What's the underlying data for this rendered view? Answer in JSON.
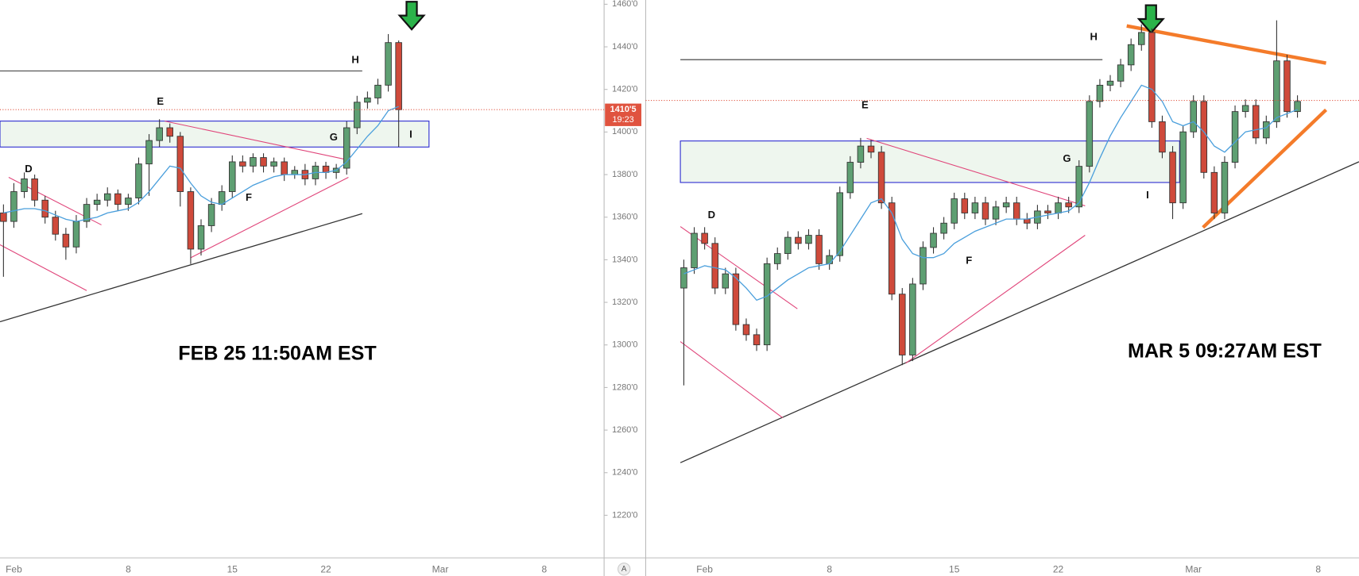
{
  "chart_data": [
    {
      "type": "candlestick",
      "note": "FEB 25 11:50AM EST",
      "labels": [
        "D",
        "E",
        "F",
        "G",
        "H",
        "I"
      ],
      "categories": [
        null,
        "Feb",
        null,
        null,
        null,
        null,
        null,
        null,
        null,
        null,
        null,
        null,
        "8",
        null,
        null,
        null,
        null,
        null,
        null,
        null,
        null,
        null,
        "15",
        null,
        null,
        null,
        null,
        null,
        null,
        null,
        null,
        "22",
        null,
        null,
        null,
        null,
        null,
        null,
        null,
        null,
        null,
        null,
        "Mar",
        null,
        null,
        null,
        null,
        null,
        null,
        null,
        null,
        null,
        "8",
        null
      ],
      "open": [
        1362,
        1358,
        1372,
        1378,
        1368,
        1360,
        1352,
        1346,
        1358,
        1366,
        1368,
        1371,
        1366,
        1369,
        1385,
        1396,
        1402,
        1398,
        1372,
        1345,
        1356,
        1366,
        1372,
        1386,
        1384,
        1388,
        1384,
        1386,
        1380,
        1382,
        1378,
        1384,
        1381,
        1383,
        1402,
        1414,
        1416,
        1422,
        1442,
        null,
        null,
        null,
        null,
        null,
        null,
        null,
        null,
        null,
        null,
        null,
        null,
        null,
        null,
        null
      ],
      "high": [
        1366,
        1376,
        1381,
        1380,
        1370,
        1363,
        1355,
        1361,
        1369,
        1371,
        1374,
        1373,
        1371,
        1388,
        1399,
        1406,
        1404,
        1400,
        1374,
        1359,
        1369,
        1375,
        1389,
        1389,
        1390,
        1390,
        1388,
        1388,
        1384,
        1385,
        1386,
        1386,
        1385,
        1405,
        1417,
        1419,
        1425,
        1446,
        1443,
        null,
        null,
        null,
        null,
        null,
        null,
        null,
        null,
        null,
        null,
        null,
        null,
        null,
        null,
        null
      ],
      "low": [
        1332,
        1355,
        1369,
        1365,
        1357,
        1349,
        1340,
        1343,
        1355,
        1363,
        1365,
        1363,
        1363,
        1366,
        1370,
        1393,
        1395,
        1365,
        1338,
        1342,
        1353,
        1363,
        1369,
        1381,
        1381,
        1381,
        1381,
        1377,
        1378,
        1375,
        1375,
        1378,
        1378,
        1380,
        1399,
        1411,
        1413,
        1419,
        1393,
        null,
        null,
        null,
        null,
        null,
        null,
        null,
        null,
        null,
        null,
        null,
        null,
        null,
        null,
        null
      ],
      "close": [
        1358,
        1372,
        1378,
        1368,
        1360,
        1352,
        1346,
        1358,
        1366,
        1368,
        1371,
        1366,
        1369,
        1385,
        1396,
        1402,
        1398,
        1372,
        1345,
        1356,
        1366,
        1372,
        1386,
        1384,
        1388,
        1384,
        1386,
        1380,
        1382,
        1378,
        1384,
        1381,
        1383,
        1402,
        1414,
        1416,
        1422,
        1442,
        1410.5,
        null,
        null,
        null,
        null,
        null,
        null,
        null,
        null,
        null,
        null,
        null,
        null,
        null,
        null,
        null
      ],
      "ma": [
        1362,
        1363,
        1364,
        1364,
        1363,
        1361,
        1359,
        1358,
        1359,
        1360,
        1362,
        1363,
        1364,
        1367,
        1372,
        1378,
        1384,
        1383,
        1376,
        1370,
        1367,
        1366,
        1369,
        1372,
        1375,
        1377,
        1379,
        1380,
        1380,
        1380,
        1381,
        1381,
        1382,
        1386,
        1392,
        1398,
        1403,
        1410,
        1412,
        null,
        null,
        null,
        null,
        null,
        null,
        null,
        null,
        null,
        null,
        null,
        null,
        null,
        null,
        null
      ],
      "up_color": "#5e9f72",
      "down_color": "#cf4a3b",
      "ma_color": "#4a9fdc",
      "ylim": [
        1200,
        1462
      ],
      "yticks": [
        {
          "value": 1220,
          "label": "1220'0"
        },
        {
          "value": 1240,
          "label": "1240'0"
        },
        {
          "value": 1260,
          "label": "1260'0"
        },
        {
          "value": 1280,
          "label": "1280'0"
        },
        {
          "value": 1300,
          "label": "1300'0"
        },
        {
          "value": 1320,
          "label": "1320'0"
        },
        {
          "value": 1340,
          "label": "1340'0"
        },
        {
          "value": 1360,
          "label": "1360'0"
        },
        {
          "value": 1380,
          "label": "1380'0"
        },
        {
          "value": 1400,
          "label": "1400'0"
        },
        {
          "value": 1420,
          "label": "1420'0"
        },
        {
          "value": 1440,
          "label": "1440'0"
        },
        {
          "value": 1460,
          "label": "1460'0"
        }
      ],
      "last_price": {
        "value": 1410.5,
        "label": "1410'5"
      },
      "countdown": "19:23",
      "auto_button": "A"
    },
    {
      "type": "candlestick",
      "note": "MAR 5 09:27AM EST",
      "labels": [
        "D",
        "E",
        "F",
        "G",
        "H",
        "I"
      ],
      "categories": [
        null,
        null,
        "Feb",
        null,
        null,
        null,
        null,
        null,
        null,
        null,
        null,
        null,
        null,
        null,
        "8",
        null,
        null,
        null,
        null,
        null,
        null,
        null,
        null,
        null,
        null,
        null,
        "15",
        null,
        null,
        null,
        null,
        null,
        null,
        null,
        null,
        null,
        "22",
        null,
        null,
        null,
        null,
        null,
        null,
        null,
        null,
        null,
        null,
        null,
        null,
        "Mar",
        null,
        null,
        null,
        null,
        null,
        null,
        null,
        null,
        null,
        null,
        null,
        "8"
      ],
      "open": [
        1318,
        1328,
        1345,
        1340,
        1318,
        1325,
        1300,
        1295,
        1290,
        1330,
        1335,
        1343,
        1340,
        1344,
        1330,
        1334,
        1365,
        1380,
        1388,
        1385,
        1360,
        1315,
        1285,
        1320,
        1338,
        1345,
        1350,
        1362,
        1355,
        1360,
        1352,
        1358,
        1360,
        1352,
        1350,
        1356,
        1355,
        1360,
        1358,
        1378,
        1410,
        1418,
        1420,
        1428,
        1438,
        1444,
        1400,
        1385,
        1360,
        1395,
        1410,
        1375,
        1355,
        1380,
        1405,
        1408,
        1392,
        1400,
        1430,
        1405,
        null,
        null
      ],
      "high": [
        1332,
        1348,
        1348,
        1343,
        1328,
        1328,
        1303,
        1298,
        1333,
        1338,
        1346,
        1346,
        1347,
        1347,
        1337,
        1368,
        1383,
        1392,
        1391,
        1388,
        1363,
        1318,
        1323,
        1341,
        1348,
        1353,
        1365,
        1365,
        1363,
        1363,
        1361,
        1363,
        1363,
        1355,
        1359,
        1359,
        1363,
        1363,
        1381,
        1413,
        1421,
        1423,
        1431,
        1441,
        1448,
        1446,
        1403,
        1388,
        1398,
        1413,
        1413,
        1378,
        1383,
        1408,
        1411,
        1411,
        1403,
        1450,
        1433,
        1413,
        null,
        null
      ],
      "low": [
        1270,
        1325,
        1337,
        1315,
        1315,
        1297,
        1292,
        1287,
        1287,
        1327,
        1332,
        1337,
        1337,
        1327,
        1327,
        1331,
        1362,
        1377,
        1382,
        1357,
        1312,
        1280,
        1282,
        1317,
        1335,
        1342,
        1347,
        1352,
        1352,
        1349,
        1349,
        1355,
        1349,
        1347,
        1347,
        1352,
        1352,
        1355,
        1355,
        1375,
        1407,
        1415,
        1417,
        1425,
        1435,
        1397,
        1382,
        1352,
        1357,
        1392,
        1372,
        1352,
        1352,
        1377,
        1402,
        1389,
        1389,
        1397,
        1402,
        1402,
        null,
        null
      ],
      "close": [
        1328,
        1345,
        1340,
        1318,
        1325,
        1300,
        1295,
        1290,
        1330,
        1335,
        1343,
        1340,
        1344,
        1330,
        1334,
        1365,
        1380,
        1388,
        1385,
        1360,
        1315,
        1285,
        1320,
        1338,
        1345,
        1350,
        1362,
        1355,
        1360,
        1352,
        1358,
        1360,
        1352,
        1350,
        1356,
        1355,
        1360,
        1358,
        1378,
        1410,
        1418,
        1420,
        1428,
        1438,
        1444,
        1400,
        1385,
        1360,
        1395,
        1410,
        1375,
        1355,
        1380,
        1405,
        1408,
        1392,
        1400,
        1430,
        1405,
        1410,
        null,
        null
      ],
      "ma": [
        1325,
        1327,
        1329,
        1328,
        1327,
        1323,
        1318,
        1312,
        1314,
        1318,
        1322,
        1325,
        1328,
        1329,
        1330,
        1336,
        1344,
        1352,
        1360,
        1362,
        1355,
        1342,
        1335,
        1333,
        1333,
        1335,
        1340,
        1343,
        1346,
        1348,
        1350,
        1352,
        1352,
        1352,
        1353,
        1354,
        1355,
        1356,
        1360,
        1370,
        1382,
        1393,
        1402,
        1410,
        1418,
        1416,
        1410,
        1400,
        1398,
        1400,
        1395,
        1388,
        1385,
        1390,
        1395,
        1396,
        1397,
        1402,
        1404,
        1406,
        null,
        null
      ],
      "up_color": "#5e9f72",
      "down_color": "#cf4a3b",
      "ma_color": "#4a9fdc",
      "ylim": [
        1185,
        1460
      ],
      "last_price": 1410.5
    }
  ]
}
